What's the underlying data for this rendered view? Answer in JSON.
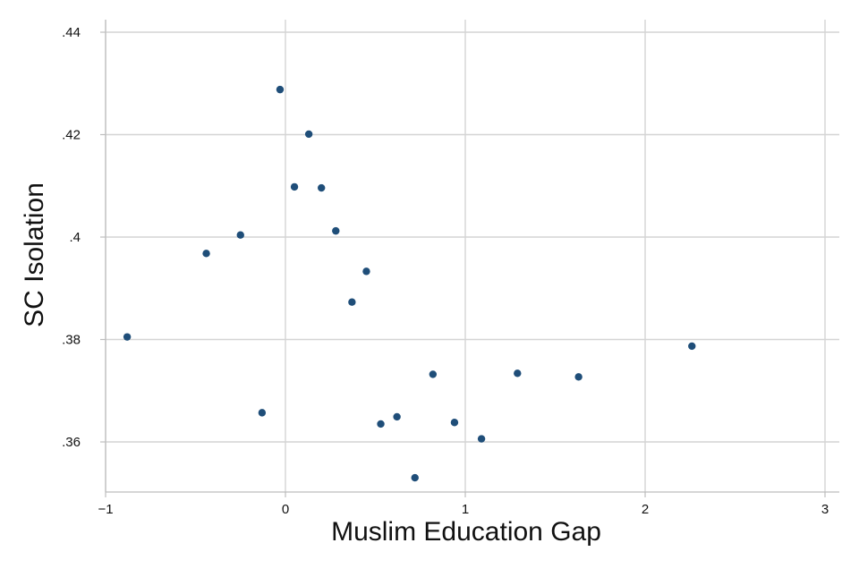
{
  "chart_data": {
    "type": "scatter",
    "title": "",
    "xlabel": "Muslim Education Gap",
    "ylabel": "SC Isolation",
    "xlim": [
      -1,
      3
    ],
    "ylim": [
      0.35,
      0.44
    ],
    "xticks": [
      {
        "value": -1,
        "label": "−1"
      },
      {
        "value": 0,
        "label": "0"
      },
      {
        "value": 1,
        "label": "1"
      },
      {
        "value": 2,
        "label": "2"
      },
      {
        "value": 3,
        "label": "3"
      }
    ],
    "yticks": [
      {
        "value": 0.36,
        "label": ".36"
      },
      {
        "value": 0.38,
        "label": ".38"
      },
      {
        "value": 0.4,
        "label": ".4"
      },
      {
        "value": 0.42,
        "label": ".42"
      },
      {
        "value": 0.44,
        "label": ".44"
      }
    ],
    "grid": true,
    "marker_color": "#1f4e79",
    "points": [
      {
        "x": -0.88,
        "y": 0.3805
      },
      {
        "x": -0.44,
        "y": 0.3968
      },
      {
        "x": -0.25,
        "y": 0.4004
      },
      {
        "x": -0.13,
        "y": 0.3657
      },
      {
        "x": -0.03,
        "y": 0.4288
      },
      {
        "x": 0.05,
        "y": 0.4098
      },
      {
        "x": 0.13,
        "y": 0.4201
      },
      {
        "x": 0.2,
        "y": 0.4096
      },
      {
        "x": 0.28,
        "y": 0.4012
      },
      {
        "x": 0.37,
        "y": 0.3873
      },
      {
        "x": 0.45,
        "y": 0.3933
      },
      {
        "x": 0.53,
        "y": 0.3635
      },
      {
        "x": 0.62,
        "y": 0.3649
      },
      {
        "x": 0.72,
        "y": 0.353
      },
      {
        "x": 0.82,
        "y": 0.3732
      },
      {
        "x": 0.94,
        "y": 0.3638
      },
      {
        "x": 1.09,
        "y": 0.3606
      },
      {
        "x": 1.29,
        "y": 0.3734
      },
      {
        "x": 1.63,
        "y": 0.3727
      },
      {
        "x": 2.26,
        "y": 0.3787
      }
    ]
  }
}
